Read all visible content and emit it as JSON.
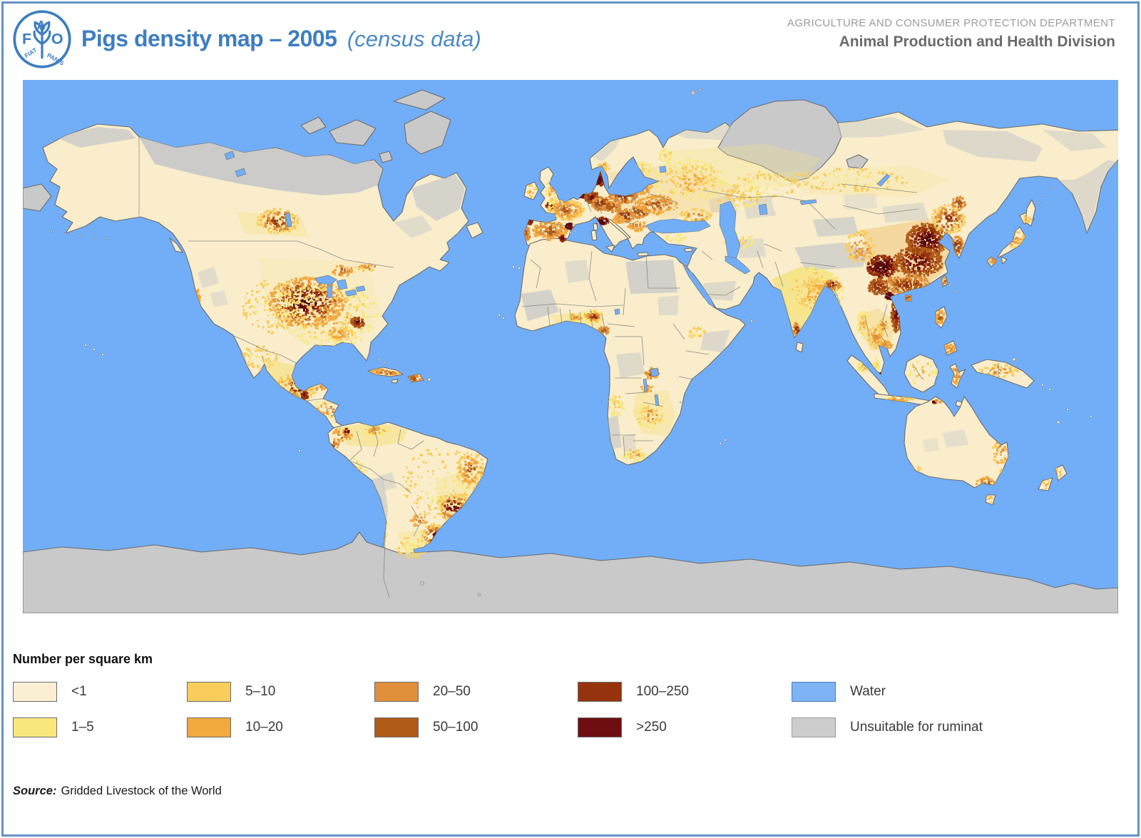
{
  "header": {
    "logo": {
      "letters": "FAO",
      "motto_left": "FIAT",
      "motto_right": "PANIS"
    },
    "title_bold": "Pigs density map – 2005",
    "title_italic": "(census data)",
    "dept_line1": "AGRICULTURE AND CONSUMER PROTECTION DEPARTMENT",
    "dept_line2": "Animal Production and Health Division"
  },
  "legend": {
    "title": "Number per square km",
    "items": [
      {
        "label": "<1",
        "color": "#FAEFD3",
        "border": "#6B6B6B"
      },
      {
        "label": "1–5",
        "color": "#F8E87D",
        "border": "#6B6B6B"
      },
      {
        "label": "5–10",
        "color": "#F8CD5C",
        "border": "#6B6B6B"
      },
      {
        "label": "10–20",
        "color": "#F2A93E",
        "border": "#6B6B6B"
      },
      {
        "label": "20–50",
        "color": "#E08F3A",
        "border": "#6B6B6B"
      },
      {
        "label": "50–100",
        "color": "#B05B18",
        "border": "#6B6B6B"
      },
      {
        "label": "100–250",
        "color": "#96330F",
        "border": "#6B6B6B"
      },
      {
        "label": ">250",
        "color": "#6E0E10",
        "border": "#6B6B6B"
      },
      {
        "label": "Water",
        "color": "#7EB3F5",
        "border": "#4F7FB5"
      },
      {
        "label": "Unsuitable for ruminat",
        "color": "#CDCDCD",
        "border": "#999999"
      }
    ]
  },
  "source": {
    "label": "Source:",
    "text": "Gridded Livestock of the World"
  },
  "palette": {
    "water": "#72AEF8",
    "land_base": "#F9EDCB",
    "unsuitable": "#C9C9C9",
    "coast": "#6B6B6B",
    "frame_blue": "#6493C6",
    "title_blue": "#3E7EC1"
  }
}
